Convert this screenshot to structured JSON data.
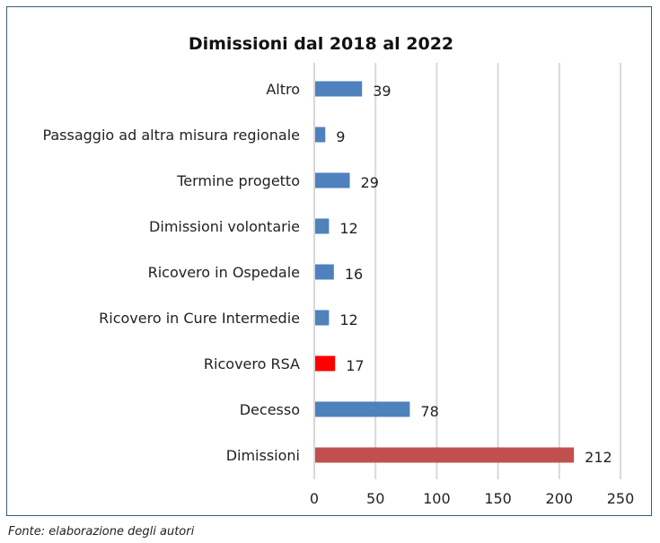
{
  "chart_data": {
    "type": "bar",
    "orientation": "horizontal",
    "title": "Dimissioni dal 2018 al 2022",
    "categories": [
      "Altro",
      "Passaggio ad altra misura regionale",
      "Termine progetto",
      "Dimissioni volontarie",
      "Ricovero in Ospedale",
      "Ricovero in Cure Intermedie",
      "Ricovero RSA",
      "Decesso",
      "Dimissioni"
    ],
    "values": [
      39,
      9,
      29,
      12,
      16,
      12,
      17,
      78,
      212
    ],
    "value_labels": [
      "39",
      "9",
      "29",
      "12",
      "16",
      "12",
      "17",
      "78",
      "212"
    ],
    "bar_colors": [
      "#4f81bd",
      "#4f81bd",
      "#4f81bd",
      "#4f81bd",
      "#4f81bd",
      "#4f81bd",
      "#ff0000",
      "#4f81bd",
      "#c0504d"
    ],
    "xlim": [
      0,
      250
    ],
    "xticks": [
      0,
      50,
      100,
      150,
      200,
      250
    ],
    "xtick_labels": [
      "0",
      "50",
      "100",
      "150",
      "200",
      "250"
    ],
    "grid": "vertical",
    "legend": "none",
    "xlabel": "",
    "ylabel": ""
  },
  "source_note": "Fonte: elaborazione degli autori",
  "colors": {
    "frame": "#3b5a73",
    "grid": "#d9d9d9",
    "axis": "#bfbfbf"
  }
}
